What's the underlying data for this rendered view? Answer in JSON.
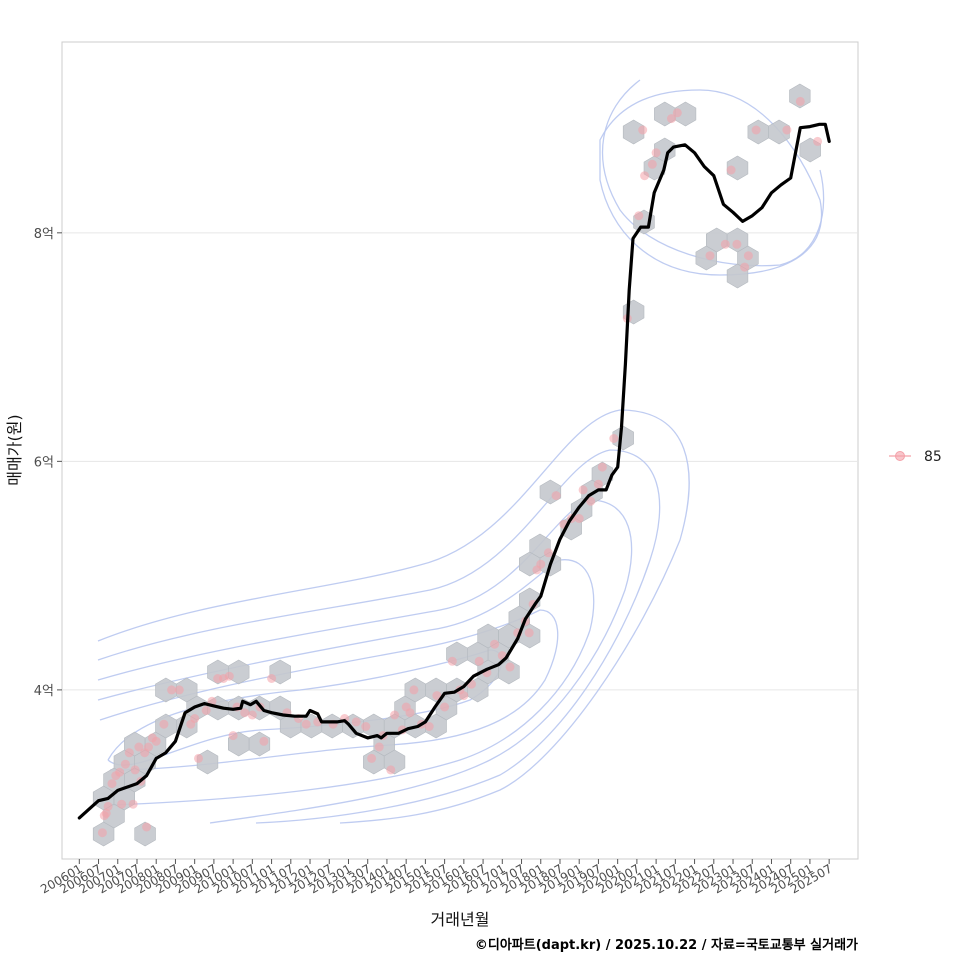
{
  "chart_data": {
    "type": "scatter",
    "title": "",
    "xlabel": "거래년월",
    "ylabel": "매매가(원)",
    "x_ticks": [
      "200601",
      "200607",
      "200701",
      "200707",
      "200801",
      "200807",
      "200901",
      "200907",
      "201001",
      "201007",
      "201101",
      "201107",
      "201201",
      "201207",
      "201301",
      "201307",
      "201401",
      "201407",
      "201501",
      "201507",
      "201601",
      "201607",
      "201701",
      "201707",
      "201801",
      "201807",
      "201901",
      "201907",
      "202001",
      "202007",
      "202101",
      "202107",
      "202201",
      "202207",
      "202301",
      "202307",
      "202401",
      "202407",
      "202501",
      "202507"
    ],
    "x_range_years": [
      2005.55,
      2026.25
    ],
    "y_ticks": [
      {
        "value": 4.0,
        "label": "4억"
      },
      {
        "value": 6.0,
        "label": "6억"
      },
      {
        "value": 8.0,
        "label": "8억"
      }
    ],
    "y_range_eok": [
      2.52,
      9.67
    ],
    "legend": [
      {
        "label": "85",
        "color": "#f4a0a8"
      }
    ],
    "series": [
      {
        "name": "85",
        "kind": "transactions",
        "points": [
          [
            2006.6,
            2.75
          ],
          [
            2006.65,
            2.9
          ],
          [
            2006.7,
            2.92
          ],
          [
            2006.75,
            2.98
          ],
          [
            2006.85,
            3.18
          ],
          [
            2006.95,
            3.25
          ],
          [
            2007.05,
            3.28
          ],
          [
            2007.1,
            3.0
          ],
          [
            2007.2,
            3.35
          ],
          [
            2007.3,
            3.45
          ],
          [
            2007.4,
            3.0
          ],
          [
            2007.45,
            3.3
          ],
          [
            2007.55,
            3.5
          ],
          [
            2007.6,
            3.2
          ],
          [
            2007.7,
            3.45
          ],
          [
            2007.75,
            2.8
          ],
          [
            2007.8,
            3.5
          ],
          [
            2007.9,
            3.58
          ],
          [
            2008.0,
            3.55
          ],
          [
            2008.2,
            3.7
          ],
          [
            2008.4,
            4.0
          ],
          [
            2008.6,
            4.0
          ],
          [
            2008.9,
            3.7
          ],
          [
            2009.0,
            3.75
          ],
          [
            2009.1,
            3.4
          ],
          [
            2009.3,
            3.82
          ],
          [
            2009.45,
            3.9
          ],
          [
            2009.6,
            4.1
          ],
          [
            2009.75,
            4.1
          ],
          [
            2009.9,
            4.12
          ],
          [
            2010.0,
            3.6
          ],
          [
            2010.1,
            3.85
          ],
          [
            2010.3,
            3.8
          ],
          [
            2010.5,
            3.78
          ],
          [
            2010.7,
            3.85
          ],
          [
            2010.8,
            3.55
          ],
          [
            2011.0,
            4.1
          ],
          [
            2011.4,
            3.8
          ],
          [
            2011.7,
            3.75
          ],
          [
            2011.9,
            3.7
          ],
          [
            2012.2,
            3.72
          ],
          [
            2012.6,
            3.7
          ],
          [
            2012.9,
            3.75
          ],
          [
            2013.2,
            3.72
          ],
          [
            2013.45,
            3.68
          ],
          [
            2013.6,
            3.4
          ],
          [
            2013.8,
            3.5
          ],
          [
            2013.9,
            3.6
          ],
          [
            2014.1,
            3.3
          ],
          [
            2014.2,
            3.78
          ],
          [
            2014.4,
            3.65
          ],
          [
            2014.5,
            3.85
          ],
          [
            2014.6,
            3.8
          ],
          [
            2014.7,
            4.0
          ],
          [
            2014.9,
            3.7
          ],
          [
            2015.1,
            3.68
          ],
          [
            2015.3,
            3.95
          ],
          [
            2015.5,
            3.85
          ],
          [
            2015.7,
            4.25
          ],
          [
            2015.9,
            4.0
          ],
          [
            2016.0,
            3.95
          ],
          [
            2016.2,
            4.05
          ],
          [
            2016.4,
            4.25
          ],
          [
            2016.6,
            4.15
          ],
          [
            2016.8,
            4.4
          ],
          [
            2017.0,
            4.3
          ],
          [
            2017.2,
            4.2
          ],
          [
            2017.4,
            4.5
          ],
          [
            2017.6,
            4.6
          ],
          [
            2017.7,
            4.5
          ],
          [
            2017.8,
            4.75
          ],
          [
            2017.9,
            5.05
          ],
          [
            2018.0,
            5.1
          ],
          [
            2018.2,
            5.2
          ],
          [
            2018.4,
            5.7
          ],
          [
            2018.6,
            5.45
          ],
          [
            2018.8,
            5.5
          ],
          [
            2019.0,
            5.5
          ],
          [
            2019.1,
            5.75
          ],
          [
            2019.3,
            5.65
          ],
          [
            2019.5,
            5.8
          ],
          [
            2019.6,
            5.95
          ],
          [
            2019.9,
            6.2
          ],
          [
            2020.25,
            7.25
          ],
          [
            2020.55,
            8.15
          ],
          [
            2020.65,
            8.9
          ],
          [
            2020.7,
            8.5
          ],
          [
            2020.9,
            8.6
          ],
          [
            2021.0,
            8.7
          ],
          [
            2021.4,
            9.0
          ],
          [
            2021.55,
            9.05
          ],
          [
            2022.4,
            7.8
          ],
          [
            2022.8,
            7.9
          ],
          [
            2022.95,
            8.55
          ],
          [
            2023.1,
            7.9
          ],
          [
            2023.3,
            7.7
          ],
          [
            2023.4,
            7.8
          ],
          [
            2023.6,
            8.9
          ],
          [
            2024.4,
            8.9
          ],
          [
            2024.75,
            9.15
          ],
          [
            2025.2,
            8.8
          ]
        ]
      },
      {
        "name": "moving-average",
        "kind": "line",
        "points": [
          [
            2006.0,
            2.88
          ],
          [
            2006.3,
            2.97
          ],
          [
            2006.5,
            3.03
          ],
          [
            2006.75,
            3.05
          ],
          [
            2007.0,
            3.12
          ],
          [
            2007.25,
            3.15
          ],
          [
            2007.5,
            3.18
          ],
          [
            2007.75,
            3.25
          ],
          [
            2008.0,
            3.4
          ],
          [
            2008.25,
            3.45
          ],
          [
            2008.5,
            3.55
          ],
          [
            2008.75,
            3.8
          ],
          [
            2009.0,
            3.85
          ],
          [
            2009.25,
            3.88
          ],
          [
            2009.5,
            3.86
          ],
          [
            2009.75,
            3.84
          ],
          [
            2010.0,
            3.83
          ],
          [
            2010.2,
            3.84
          ],
          [
            2010.25,
            3.9
          ],
          [
            2010.45,
            3.87
          ],
          [
            2010.6,
            3.9
          ],
          [
            2010.8,
            3.82
          ],
          [
            2011.0,
            3.8
          ],
          [
            2011.3,
            3.78
          ],
          [
            2011.6,
            3.77
          ],
          [
            2011.9,
            3.77
          ],
          [
            2012.0,
            3.82
          ],
          [
            2012.2,
            3.79
          ],
          [
            2012.3,
            3.72
          ],
          [
            2012.7,
            3.72
          ],
          [
            2012.9,
            3.73
          ],
          [
            2013.0,
            3.7
          ],
          [
            2013.2,
            3.62
          ],
          [
            2013.5,
            3.58
          ],
          [
            2013.75,
            3.6
          ],
          [
            2013.85,
            3.58
          ],
          [
            2014.0,
            3.62
          ],
          [
            2014.3,
            3.62
          ],
          [
            2014.55,
            3.66
          ],
          [
            2014.8,
            3.68
          ],
          [
            2015.0,
            3.72
          ],
          [
            2015.25,
            3.85
          ],
          [
            2015.5,
            3.97
          ],
          [
            2015.75,
            3.98
          ],
          [
            2016.0,
            4.03
          ],
          [
            2016.25,
            4.12
          ],
          [
            2016.6,
            4.18
          ],
          [
            2016.9,
            4.22
          ],
          [
            2017.1,
            4.28
          ],
          [
            2017.4,
            4.45
          ],
          [
            2017.6,
            4.62
          ],
          [
            2017.85,
            4.75
          ],
          [
            2018.0,
            4.82
          ],
          [
            2018.25,
            5.1
          ],
          [
            2018.5,
            5.32
          ],
          [
            2018.75,
            5.48
          ],
          [
            2019.0,
            5.6
          ],
          [
            2019.25,
            5.7
          ],
          [
            2019.5,
            5.75
          ],
          [
            2019.7,
            5.75
          ],
          [
            2019.85,
            5.88
          ],
          [
            2020.0,
            5.95
          ],
          [
            2020.1,
            6.3
          ],
          [
            2020.2,
            6.85
          ],
          [
            2020.3,
            7.5
          ],
          [
            2020.4,
            7.95
          ],
          [
            2020.6,
            8.05
          ],
          [
            2020.8,
            8.05
          ],
          [
            2020.95,
            8.35
          ],
          [
            2021.2,
            8.55
          ],
          [
            2021.3,
            8.7
          ],
          [
            2021.45,
            8.75
          ],
          [
            2021.75,
            8.77
          ],
          [
            2022.0,
            8.7
          ],
          [
            2022.25,
            8.58
          ],
          [
            2022.5,
            8.5
          ],
          [
            2022.75,
            8.25
          ],
          [
            2023.0,
            8.18
          ],
          [
            2023.25,
            8.1
          ],
          [
            2023.5,
            8.15
          ],
          [
            2023.75,
            8.22
          ],
          [
            2024.0,
            8.35
          ],
          [
            2024.25,
            8.42
          ],
          [
            2024.5,
            8.48
          ],
          [
            2024.75,
            8.92
          ],
          [
            2025.0,
            8.93
          ],
          [
            2025.25,
            8.95
          ],
          [
            2025.4,
            8.95
          ],
          [
            2025.5,
            8.8
          ]
        ]
      }
    ],
    "density_contours": "kernel density contour overlay",
    "hexbin_density": "hexagonal bin overlay of transaction counts"
  },
  "footer": {
    "caption": "©디아파트(dapt.kr) / 2025.10.22 / 자료=국토교통부 실거래가"
  },
  "colors": {
    "point": "#f4a0a8",
    "hex": "#c4c8cd",
    "contour": "#b8c6f0",
    "line": "#000000",
    "grid": "#e6e6e6"
  }
}
